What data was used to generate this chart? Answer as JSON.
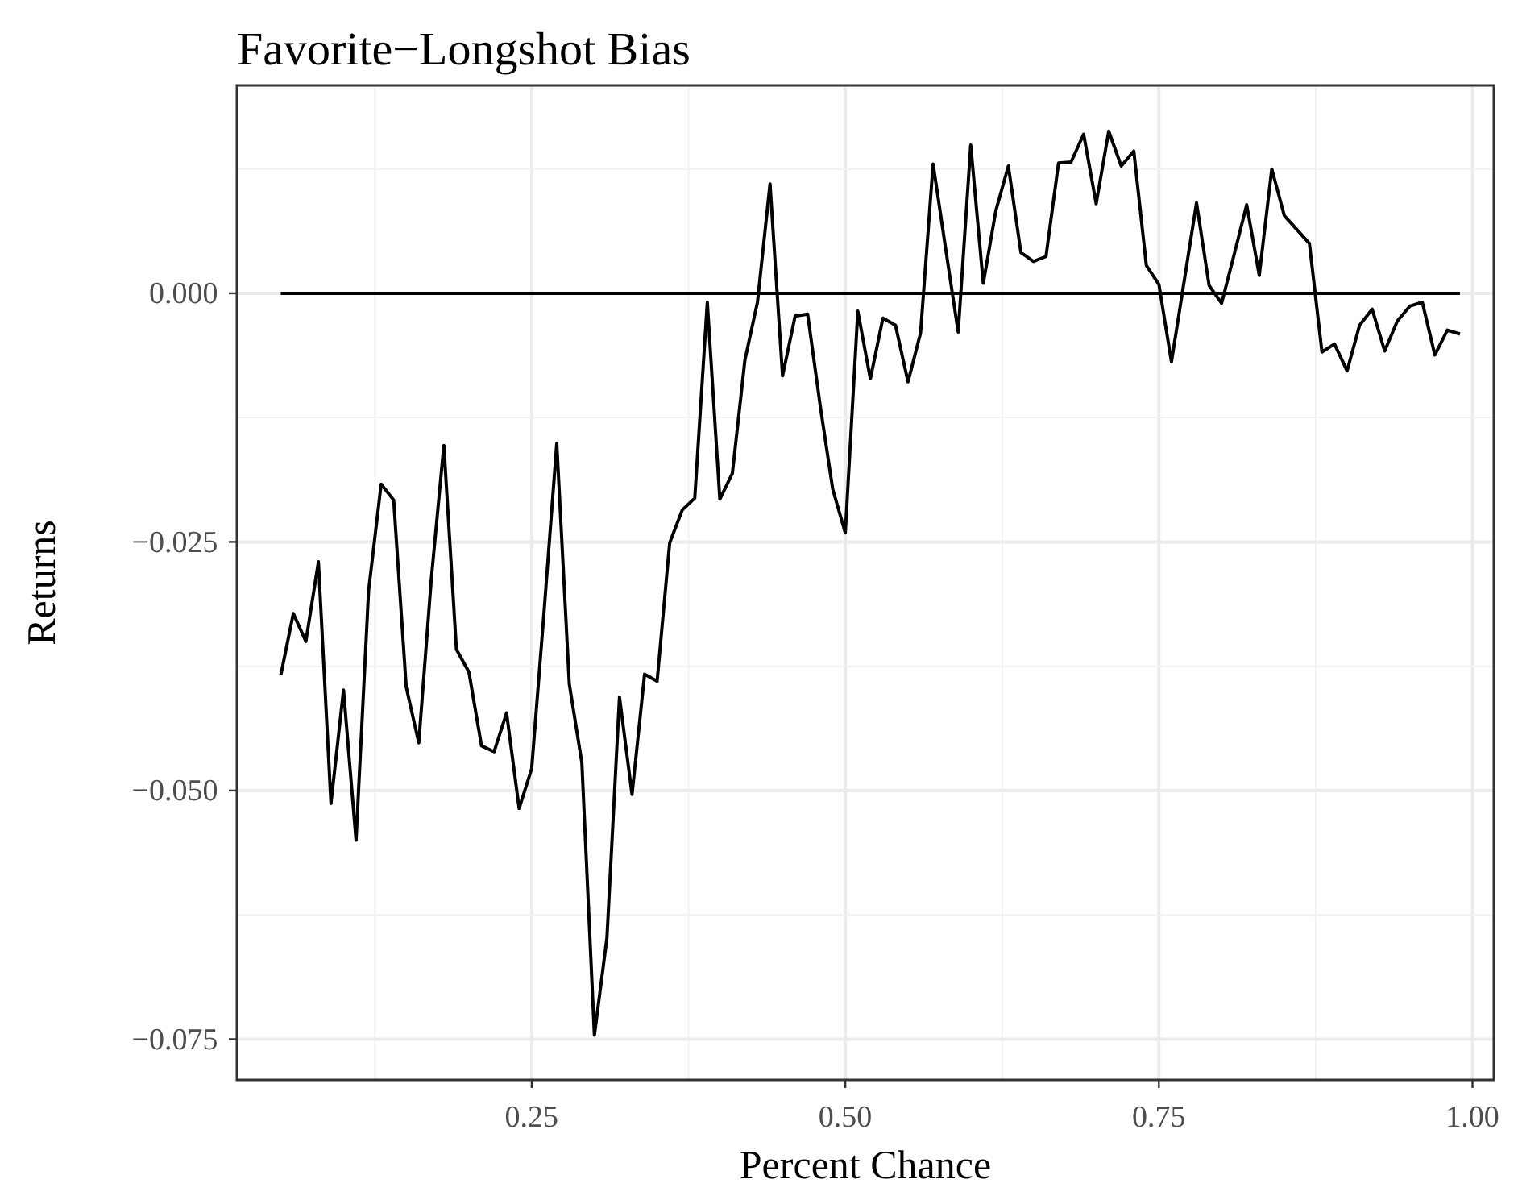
{
  "chart_data": {
    "type": "line",
    "title": "Favorite−Longshot Bias",
    "xlabel": "Percent Chance",
    "ylabel": "Returns",
    "xlim": [
      0.015,
      1.017
    ],
    "ylim": [
      -0.0791,
      0.0209
    ],
    "xticks": [
      0.25,
      {
        "value": 0.5,
        "label": "0.50"
      },
      0.75,
      {
        "value": 1.0,
        "label": "1.00"
      }
    ],
    "yticks": [
      {
        "value": -0.075,
        "label": "−0.075"
      },
      {
        "value": -0.05,
        "label": "−0.050"
      },
      {
        "value": -0.025,
        "label": "−0.025"
      },
      {
        "value": 0,
        "label": "0.000"
      }
    ],
    "grid": true,
    "line_style": "solid",
    "marker": "none",
    "series": [
      {
        "color": "#000000",
        "x": [
          0.05,
          0.06,
          0.07,
          0.08,
          0.09,
          0.1,
          0.11,
          0.12,
          0.13,
          0.14,
          0.15,
          0.16,
          0.17,
          0.18,
          0.19,
          0.2,
          0.21,
          0.22,
          0.23,
          0.24,
          0.25,
          0.26,
          0.27,
          0.28,
          0.29,
          0.3,
          0.31,
          0.32,
          0.33,
          0.34,
          0.35,
          0.36,
          0.37,
          0.38,
          0.39,
          0.4,
          0.41,
          0.42,
          0.43,
          0.44,
          0.45,
          0.46,
          0.47,
          0.48,
          0.49,
          0.5,
          0.51,
          0.52,
          0.53,
          0.54,
          0.55,
          0.56,
          0.57,
          0.58,
          0.59,
          0.6,
          0.61,
          0.62,
          0.63,
          0.64,
          0.65,
          0.66,
          0.67,
          0.68,
          0.69,
          0.7,
          0.71,
          0.72,
          0.73,
          0.74,
          0.75,
          0.76,
          0.77,
          0.78,
          0.79,
          0.8,
          0.81,
          0.82,
          0.83,
          0.84,
          0.85,
          0.86,
          0.87,
          0.88,
          0.89,
          0.9,
          0.91,
          0.92,
          0.93,
          0.94,
          0.95,
          0.96,
          0.97,
          0.98,
          0.99
        ],
        "values": [
          -0.0384,
          -0.0322,
          -0.035,
          -0.027,
          -0.0513,
          -0.0399,
          -0.055,
          -0.0299,
          -0.0192,
          -0.0208,
          -0.0396,
          -0.0452,
          -0.0287,
          -0.0153,
          -0.0358,
          -0.0381,
          -0.0455,
          -0.0461,
          -0.0422,
          -0.0518,
          -0.0478,
          -0.0318,
          -0.0151,
          -0.0393,
          -0.0472,
          -0.0746,
          -0.0648,
          -0.0406,
          -0.0504,
          -0.0383,
          -0.039,
          -0.0251,
          -0.0218,
          -0.0206,
          -0.0009,
          -0.0207,
          -0.0181,
          -0.0067,
          -0.0009,
          0.011,
          -0.0083,
          -0.0023,
          -0.0021,
          -0.0113,
          -0.0197,
          -0.0241,
          -0.0018,
          -0.0086,
          -0.0025,
          -0.0032,
          -0.0089,
          -0.004,
          0.013,
          0.0045,
          -0.0039,
          0.0149,
          0.001,
          0.0083,
          0.0128,
          0.0041,
          0.0032,
          0.0037,
          0.0131,
          0.0132,
          0.016,
          0.009,
          0.0163,
          0.0128,
          0.0143,
          0.0028,
          0.0009,
          -0.0069,
          0.0011,
          0.0091,
          0.0008,
          -0.001,
          0.0039,
          0.0089,
          0.0018,
          0.0125,
          0.0078,
          0.0064,
          0.005,
          -0.0059,
          -0.0051,
          -0.0078,
          -0.0032,
          -0.0016,
          -0.0058,
          -0.0028,
          -0.0013,
          -0.0009,
          -0.0062,
          -0.0037,
          -0.0041
        ]
      },
      {
        "color": "#000000",
        "x": [
          0.05,
          0.99
        ],
        "values": [
          0,
          0
        ]
      }
    ]
  }
}
